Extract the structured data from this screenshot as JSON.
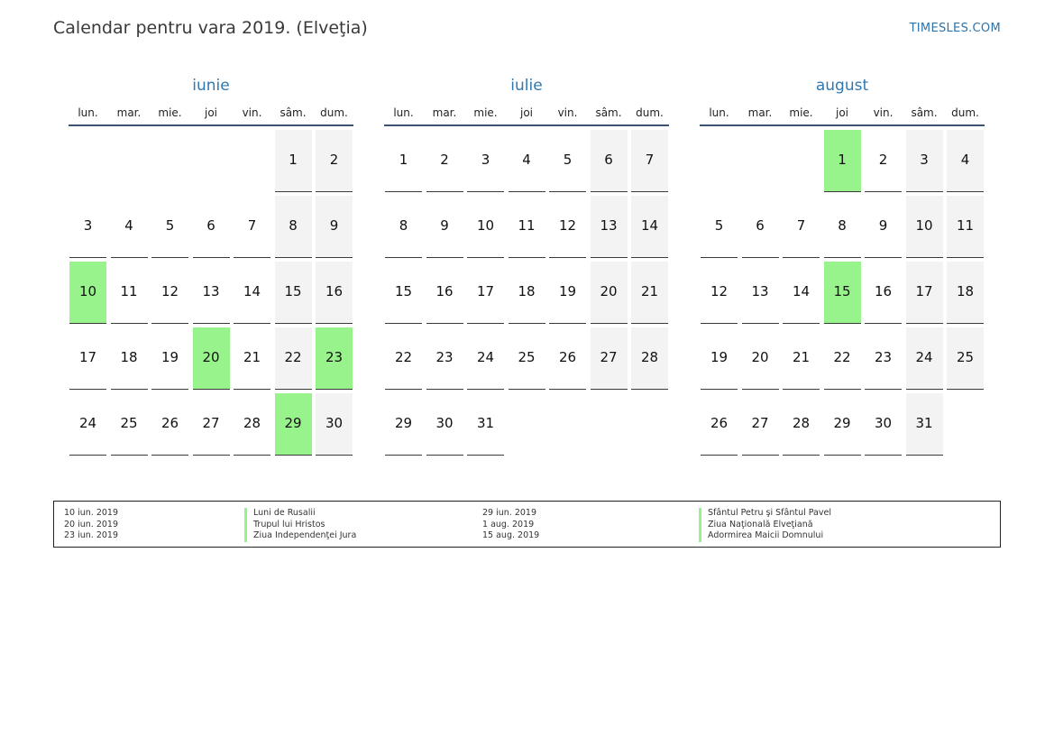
{
  "header": {
    "title": "Calendar pentru vara 2019. (Elveţia)",
    "brand": "TIMESLES.COM"
  },
  "colors": {
    "accent": "#2f78b0",
    "holiday": "#99f38d",
    "weekend": "#f3f3f3",
    "rule": "#3c5370"
  },
  "weekdays": [
    "lun.",
    "mar.",
    "mie.",
    "joi",
    "vin.",
    "sâm.",
    "dum."
  ],
  "months": [
    {
      "name": "iunie",
      "offset": 5,
      "days": 30,
      "holidays": [
        10,
        20,
        23,
        29
      ]
    },
    {
      "name": "iulie",
      "offset": 0,
      "days": 31,
      "holidays": []
    },
    {
      "name": "august",
      "offset": 3,
      "days": 31,
      "holidays": [
        1,
        15
      ]
    }
  ],
  "legend": [
    [
      {
        "date": "10 iun. 2019",
        "name": "Luni de Rusalii"
      },
      {
        "date": "20 iun. 2019",
        "name": "Trupul lui Hristos"
      },
      {
        "date": "23 iun. 2019",
        "name": "Ziua Independenţei Jura"
      }
    ],
    [
      {
        "date": "29 iun. 2019",
        "name": "Sfântul Petru şi Sfântul Pavel"
      },
      {
        "date": "1 aug. 2019",
        "name": "Ziua Naţională Elveţiană"
      },
      {
        "date": "15 aug. 2019",
        "name": "Adormirea Maicii Domnului"
      }
    ]
  ]
}
